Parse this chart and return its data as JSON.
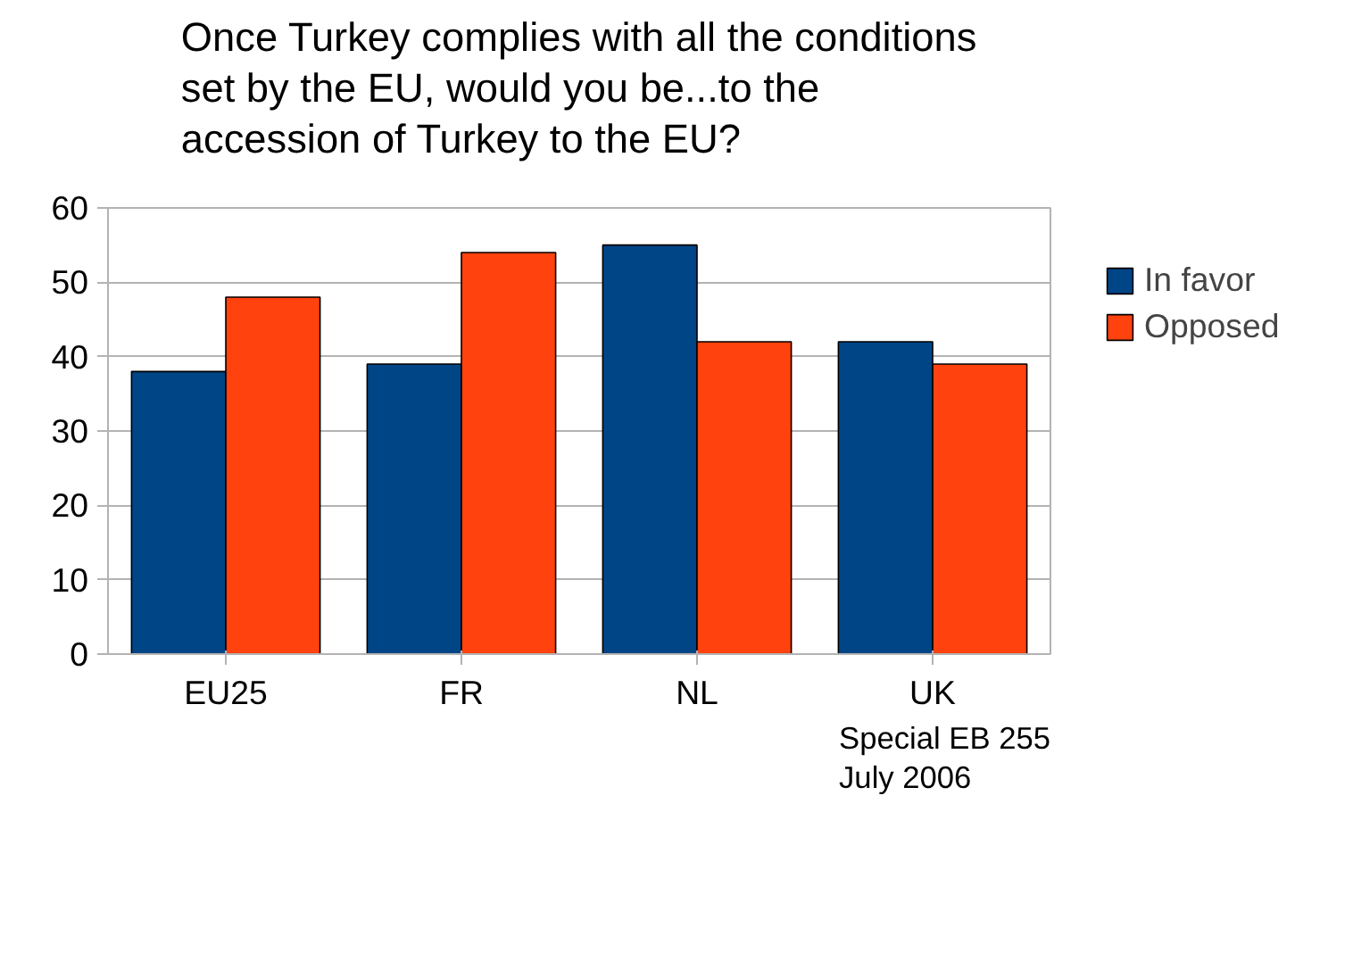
{
  "chart_data": {
    "type": "bar",
    "title": "Once Turkey complies with all the conditions\nset by the EU, would you be...to the\naccession of Turkey to the EU?",
    "categories": [
      "EU25",
      "FR",
      "NL",
      "UK"
    ],
    "series": [
      {
        "name": "In favor",
        "color": "#004586",
        "values": [
          38,
          39,
          55,
          42
        ]
      },
      {
        "name": "Opposed",
        "color": "#ff420e",
        "values": [
          48,
          54,
          42,
          39
        ]
      }
    ],
    "ylim": [
      0,
      60
    ],
    "yticks": [
      0,
      10,
      20,
      30,
      40,
      50,
      60
    ],
    "grid": "y",
    "legend": "right",
    "annotations": [
      "Special EB 255\nJuly 2006"
    ]
  }
}
